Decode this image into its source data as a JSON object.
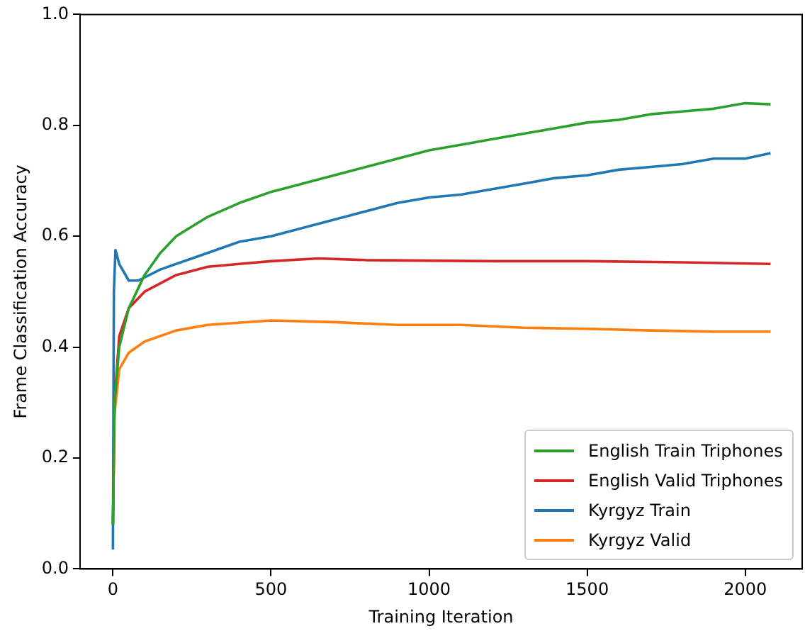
{
  "chart_data": {
    "type": "line",
    "xlabel": "Training Iteration",
    "ylabel": "Frame Classification Accuracy",
    "xlim": [
      -104,
      2180
    ],
    "xticks": [
      0,
      500,
      1000,
      1500,
      2000
    ],
    "ylim": [
      0,
      1
    ],
    "yticks": [
      {
        "value": 0,
        "label": "0.0"
      },
      0.2,
      0.4,
      0.6,
      0.8,
      {
        "value": 1,
        "label": "1.0"
      }
    ],
    "grid": false,
    "legend": "bottom right",
    "marker": "none",
    "line_style": "solid",
    "series": [
      {
        "name": "English Train Triphones",
        "color": "#2ca02c",
        "x": [
          0,
          5,
          20,
          50,
          100,
          150,
          200,
          300,
          400,
          500,
          600,
          700,
          800,
          900,
          1000,
          1100,
          1200,
          1300,
          1400,
          1500,
          1600,
          1700,
          1800,
          1900,
          2000,
          2080
        ],
        "values": [
          0.08,
          0.3,
          0.4,
          0.47,
          0.53,
          0.57,
          0.6,
          0.635,
          0.66,
          0.68,
          0.695,
          0.71,
          0.725,
          0.74,
          0.755,
          0.765,
          0.775,
          0.785,
          0.795,
          0.805,
          0.81,
          0.82,
          0.825,
          0.83,
          0.84,
          0.838
        ]
      },
      {
        "name": "English Valid Triphones",
        "color": "#d62728",
        "x": [
          0,
          5,
          20,
          50,
          100,
          200,
          300,
          400,
          500,
          650,
          800,
          1000,
          1200,
          1500,
          1800,
          2080
        ],
        "values": [
          0.08,
          0.3,
          0.42,
          0.47,
          0.5,
          0.53,
          0.545,
          0.55,
          0.555,
          0.56,
          0.557,
          0.556,
          0.555,
          0.555,
          0.553,
          0.55
        ]
      },
      {
        "name": "Kyrgyz Train",
        "color": "#1f77b4",
        "x": [
          0,
          3,
          8,
          20,
          50,
          80,
          150,
          250,
          400,
          500,
          600,
          700,
          800,
          900,
          1000,
          1100,
          1200,
          1300,
          1400,
          1500,
          1600,
          1700,
          1800,
          1900,
          2000,
          2080
        ],
        "values": [
          0.035,
          0.5,
          0.575,
          0.55,
          0.52,
          0.52,
          0.54,
          0.56,
          0.59,
          0.6,
          0.615,
          0.63,
          0.645,
          0.66,
          0.67,
          0.675,
          0.685,
          0.695,
          0.705,
          0.71,
          0.72,
          0.725,
          0.73,
          0.74,
          0.74,
          0.75
        ]
      },
      {
        "name": "Kyrgyz Valid",
        "color": "#ff7f0e",
        "x": [
          0,
          5,
          20,
          50,
          100,
          200,
          300,
          500,
          700,
          900,
          1100,
          1300,
          1500,
          1700,
          1900,
          2080
        ],
        "values": [
          0.08,
          0.28,
          0.36,
          0.39,
          0.41,
          0.43,
          0.44,
          0.448,
          0.445,
          0.44,
          0.44,
          0.435,
          0.433,
          0.43,
          0.428,
          0.428
        ]
      }
    ]
  }
}
